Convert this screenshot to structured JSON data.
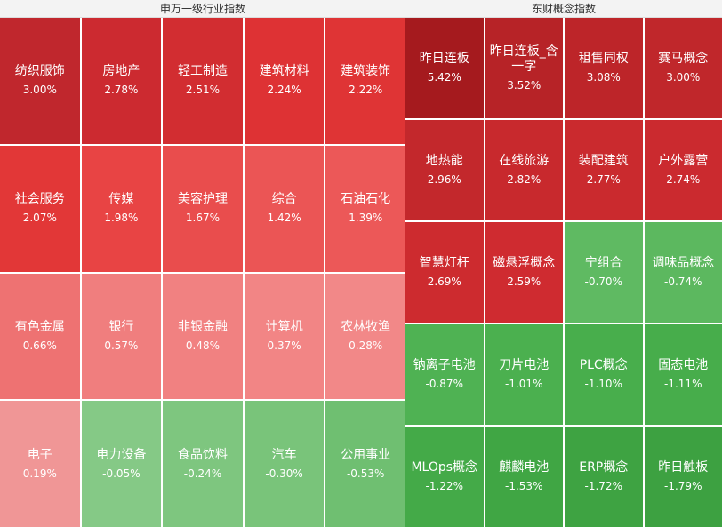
{
  "panels": [
    {
      "title": "申万一级行业指数",
      "tiles": [
        {
          "name": "纺织服饰",
          "change": "3.00%",
          "color": "#c0272d"
        },
        {
          "name": "房地产",
          "change": "2.78%",
          "color": "#cc2a30"
        },
        {
          "name": "轻工制造",
          "change": "2.51%",
          "color": "#d22d31"
        },
        {
          "name": "建筑材料",
          "change": "2.24%",
          "color": "#de3234"
        },
        {
          "name": "建筑装饰",
          "change": "2.22%",
          "color": "#df3435"
        },
        {
          "name": "社会服务",
          "change": "2.07%",
          "color": "#e23737"
        },
        {
          "name": "传媒",
          "change": "1.98%",
          "color": "#e84444"
        },
        {
          "name": "美容护理",
          "change": "1.67%",
          "color": "#e94d4d"
        },
        {
          "name": "综合",
          "change": "1.42%",
          "color": "#eb5555"
        },
        {
          "name": "石油石化",
          "change": "1.39%",
          "color": "#ec5858"
        },
        {
          "name": "有色金属",
          "change": "0.66%",
          "color": "#ee7272"
        },
        {
          "name": "银行",
          "change": "0.57%",
          "color": "#f07e7e"
        },
        {
          "name": "非银金融",
          "change": "0.48%",
          "color": "#f18181"
        },
        {
          "name": "计算机",
          "change": "0.37%",
          "color": "#f28585"
        },
        {
          "name": "农林牧渔",
          "change": "0.28%",
          "color": "#f28888"
        },
        {
          "name": "电子",
          "change": "0.19%",
          "color": "#f09696"
        },
        {
          "name": "电力设备",
          "change": "-0.05%",
          "color": "#85c986"
        },
        {
          "name": "食品饮料",
          "change": "-0.24%",
          "color": "#7ec67f"
        },
        {
          "name": "汽车",
          "change": "-0.30%",
          "color": "#79c47a"
        },
        {
          "name": "公用事业",
          "change": "-0.53%",
          "color": "#6fbf71"
        }
      ]
    },
    {
      "title": "东财概念指数",
      "tiles": [
        {
          "name": "昨日连板",
          "change": "5.42%",
          "color": "#a51a1e"
        },
        {
          "name": "昨日连板_含一字",
          "change": "3.52%",
          "color": "#b72327"
        },
        {
          "name": "租售同权",
          "change": "3.08%",
          "color": "#bd2529"
        },
        {
          "name": "赛马概念",
          "change": "3.00%",
          "color": "#c0272b"
        },
        {
          "name": "地热能",
          "change": "2.96%",
          "color": "#c3282c"
        },
        {
          "name": "在线旅游",
          "change": "2.82%",
          "color": "#c8292d"
        },
        {
          "name": "装配建筑",
          "change": "2.77%",
          "color": "#ca2a2e"
        },
        {
          "name": "户外露营",
          "change": "2.74%",
          "color": "#cb2a2f"
        },
        {
          "name": "智慧灯杆",
          "change": "2.69%",
          "color": "#cd2b2f"
        },
        {
          "name": "磁悬浮概念",
          "change": "2.59%",
          "color": "#cf2b30"
        },
        {
          "name": "宁组合",
          "change": "-0.70%",
          "color": "#5fba62"
        },
        {
          "name": "调味品概念",
          "change": "-0.74%",
          "color": "#5cb85f"
        },
        {
          "name": "钠离子电池",
          "change": "-0.87%",
          "color": "#4fb253"
        },
        {
          "name": "刀片电池",
          "change": "-1.01%",
          "color": "#4bb04f"
        },
        {
          "name": "PLC概念",
          "change": "-1.10%",
          "color": "#48ae4c"
        },
        {
          "name": "固态电池",
          "change": "-1.11%",
          "color": "#47ad4b"
        },
        {
          "name": "MLOps概念",
          "change": "-1.22%",
          "color": "#44aa48"
        },
        {
          "name": "麒麟电池",
          "change": "-1.53%",
          "color": "#40a644"
        },
        {
          "name": "ERP概念",
          "change": "-1.72%",
          "color": "#3ea342"
        },
        {
          "name": "昨日触板",
          "change": "-1.79%",
          "color": "#3da141"
        }
      ]
    }
  ]
}
